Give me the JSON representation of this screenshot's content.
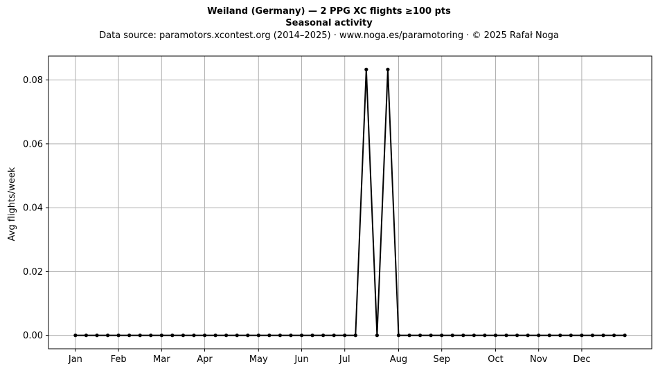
{
  "chart_data": {
    "type": "line",
    "title": "Weiland (Germany)  —  2 PPG XC flights ≥100 pts",
    "subtitle": "Seasonal activity",
    "caption": "Data source: paramotors.xcontest.org (2014–2025)  ·  www.noga.es/paramotoring  ·  © 2025 Rafał Noga",
    "xlabel": "",
    "ylabel": "Avg flights/week",
    "x_ticks": [
      {
        "label": "Jan",
        "week": 1
      },
      {
        "label": "Feb",
        "week": 5
      },
      {
        "label": "Mar",
        "week": 9
      },
      {
        "label": "Apr",
        "week": 13
      },
      {
        "label": "May",
        "week": 18
      },
      {
        "label": "Jun",
        "week": 22
      },
      {
        "label": "Jul",
        "week": 26
      },
      {
        "label": "Aug",
        "week": 31
      },
      {
        "label": "Sep",
        "week": 35
      },
      {
        "label": "Oct",
        "week": 40
      },
      {
        "label": "Nov",
        "week": 44
      },
      {
        "label": "Dec",
        "week": 48
      }
    ],
    "y_ticks": [
      0.0,
      0.02,
      0.04,
      0.06,
      0.08
    ],
    "y_tick_labels": [
      "0.00",
      "0.02",
      "0.04",
      "0.06",
      "0.08"
    ],
    "xlim": [
      -1.5,
      54.5
    ],
    "ylim": [
      -0.0042,
      0.0875
    ],
    "grid": true,
    "x": [
      1,
      2,
      3,
      4,
      5,
      6,
      7,
      8,
      9,
      10,
      11,
      12,
      13,
      14,
      15,
      16,
      17,
      18,
      19,
      20,
      21,
      22,
      23,
      24,
      25,
      26,
      27,
      28,
      29,
      30,
      31,
      32,
      33,
      34,
      35,
      36,
      37,
      38,
      39,
      40,
      41,
      42,
      43,
      44,
      45,
      46,
      47,
      48,
      49,
      50,
      51,
      52
    ],
    "series": [
      {
        "color": "#000000",
        "marker": "dot",
        "values": [
          0,
          0,
          0,
          0,
          0,
          0,
          0,
          0,
          0,
          0,
          0,
          0,
          0,
          0,
          0,
          0,
          0,
          0,
          0,
          0,
          0,
          0,
          0,
          0,
          0,
          0,
          0,
          0.0833,
          0,
          0.0833,
          0,
          0,
          0,
          0,
          0,
          0,
          0,
          0,
          0,
          0,
          0,
          0,
          0,
          0,
          0,
          0,
          0,
          0,
          0,
          0,
          0,
          0
        ]
      }
    ]
  }
}
